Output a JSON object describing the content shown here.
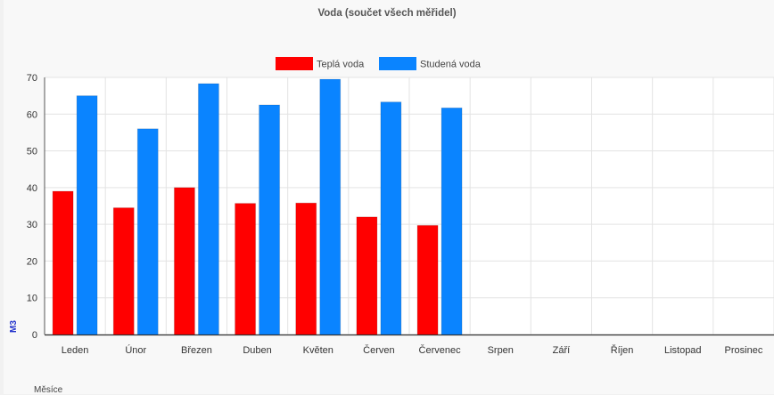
{
  "chart_data": {
    "type": "bar",
    "title": "Voda (součet všech měřidel)",
    "xlabel": "Měsíce",
    "ylabel": "M3",
    "ylim": [
      0,
      70
    ],
    "yticks": [
      0,
      10,
      20,
      30,
      40,
      50,
      60,
      70
    ],
    "grid": true,
    "legend_position": "top",
    "categories": [
      "Leden",
      "Únor",
      "Březen",
      "Duben",
      "Květen",
      "Červen",
      "Červenec",
      "Srpen",
      "Září",
      "Říjen",
      "Listopad",
      "Prosinec"
    ],
    "series": [
      {
        "name": "Teplá voda",
        "color": "#ff0000",
        "values": [
          39,
          34.5,
          40,
          35.7,
          35.8,
          32,
          29.7,
          null,
          null,
          null,
          null,
          null
        ]
      },
      {
        "name": "Studená voda",
        "color": "#0a84ff",
        "values": [
          65,
          56,
          68.3,
          62.5,
          69.5,
          63.3,
          61.7,
          null,
          null,
          null,
          null,
          null
        ]
      }
    ]
  }
}
